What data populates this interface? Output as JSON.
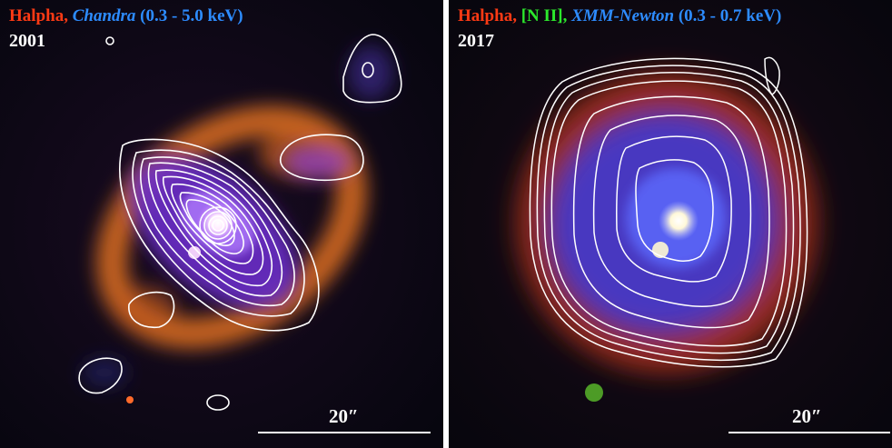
{
  "panels": [
    {
      "label_parts": [
        "Halpha,",
        "Chandra",
        "(0.3 -  5.0 keV)"
      ],
      "year": "2001",
      "scale_label": "20″",
      "colors": {
        "halpha": "#ff3a14",
        "xray": "#2d8cff"
      }
    },
    {
      "label_parts": [
        "Halpha,",
        "[N II],",
        "XMM-Newton",
        "(0.3 - 0.7 keV)"
      ],
      "year": "2017",
      "scale_label": "20″",
      "colors": {
        "halpha": "#ff3a14",
        "nii": "#2ce82c",
        "xray": "#2d8cff"
      }
    }
  ]
}
